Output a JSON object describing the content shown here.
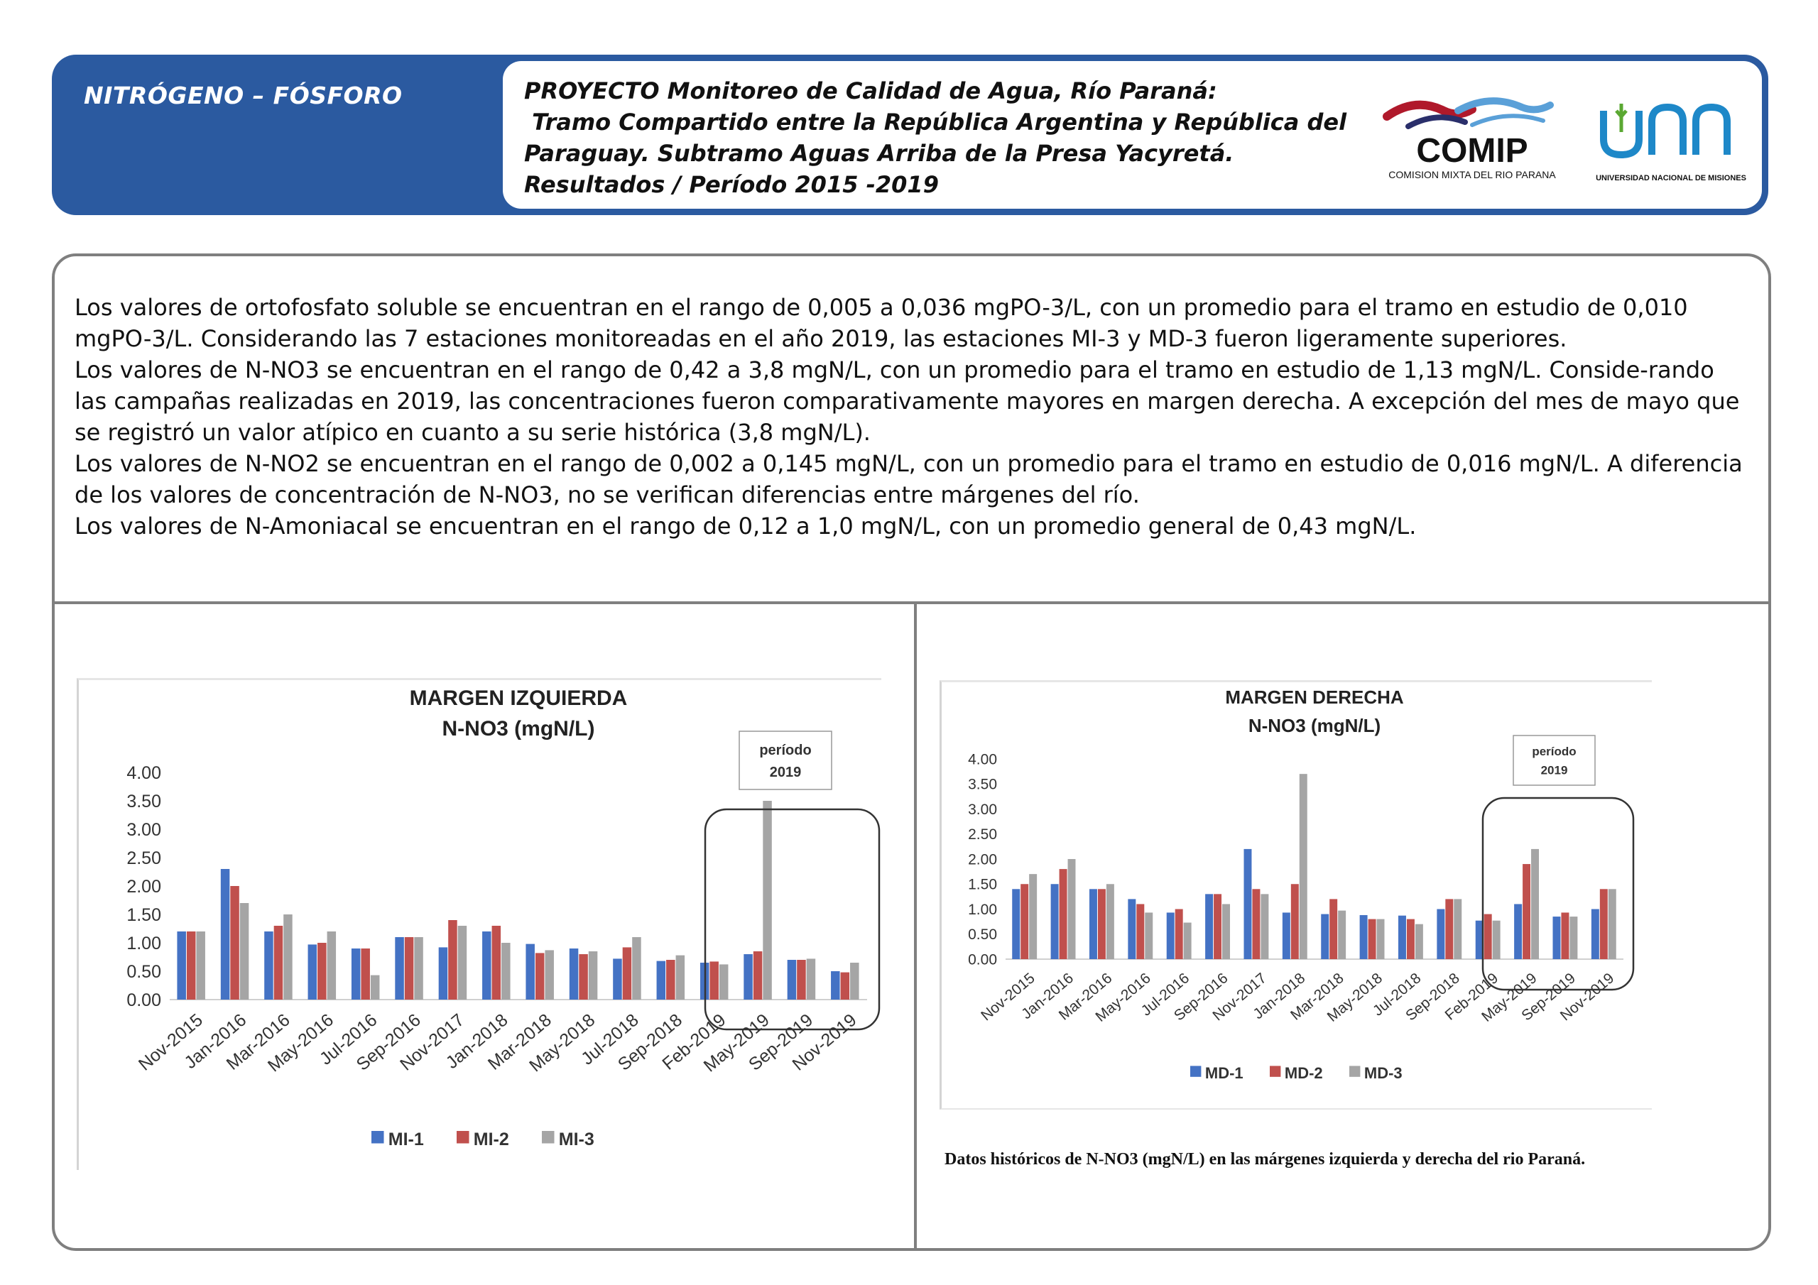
{
  "header": {
    "section_title": "NITRÓGENO – FÓSFORO",
    "project_lines": [
      "PROYECTO Monitoreo de Calidad de Agua, Río Paraná:",
      " Tramo Compartido entre la República Argentina y República del",
      "Paraguay. Subtramo Aguas Arriba de la Presa Yacyretá.",
      "Resultados / Período 2015 -2019"
    ],
    "logo_comip": {
      "name": "COMIP",
      "subtitle": "COMISION MIXTA DEL RIO PARANA"
    },
    "logo_unam": {
      "subtitle": "UNIVERSIDAD NACIONAL DE MISIONES"
    }
  },
  "body": {
    "paragraphs": [
      "Los valores de ortofosfato soluble se encuentran en el rango de 0,005 a 0,036 mgPO-3/L, con un promedio para el tramo en estudio de 0,010 mgPO-3/L. Considerando las 7 estaciones monitoreadas en el año 2019, las estaciones MI-3 y MD-3 fueron ligeramente superiores.",
      "Los valores de N-NO3 se encuentran en el rango de 0,42 a 3,8 mgN/L, con un promedio para el tramo en estudio de 1,13 mgN/L. Conside-rando las campañas realizadas en 2019, las concentraciones fueron comparativamente mayores en margen derecha. A excepción del mes de mayo que se registró un valor atípico en cuanto a su serie histórica (3,8 mgN/L).",
      "Los valores de N-NO2 se encuentran en el rango de 0,002 a 0,145 mgN/L, con un promedio para el tramo en estudio de 0,016 mgN/L. A diferencia de los valores de concentración de N-NO3, no se verifican diferencias entre márgenes del río.",
      "Los valores de N-Amoniacal se encuentran en el rango de 0,12 a 1,0 mgN/L, con un promedio general de 0,43 mgN/L."
    ],
    "caption": "Datos históricos de N-NO3 (mgN/L) en las márgenes izquierda y derecha del rio Paraná."
  },
  "colors": {
    "series1": "#4472c4",
    "series2": "#c0504d",
    "series3": "#a5a5a5",
    "brand": "#2b5aa0"
  },
  "chart_data": [
    {
      "type": "bar",
      "title": "MARGEN IZQUIERDA",
      "subtitle": "N-NO3 (mgN/L)",
      "categories": [
        "Nov-2015",
        "Jan-2016",
        "Mar-2016",
        "May-2016",
        "Jul-2016",
        "Sep-2016",
        "Nov-2017",
        "Jan-2018",
        "Mar-2018",
        "May-2018",
        "Jul-2018",
        "Sep-2018",
        "Feb-2019",
        "May-2019",
        "Sep-2019",
        "Nov-2019"
      ],
      "series": [
        {
          "name": "MI-1",
          "values": [
            1.2,
            2.3,
            1.2,
            0.97,
            0.9,
            1.1,
            0.92,
            1.2,
            0.98,
            0.9,
            0.72,
            0.68,
            0.65,
            0.8,
            0.7,
            0.5
          ]
        },
        {
          "name": "MI-2",
          "values": [
            1.2,
            2.0,
            1.3,
            1.0,
            0.9,
            1.1,
            1.4,
            1.3,
            0.82,
            0.8,
            0.92,
            0.7,
            0.67,
            0.85,
            0.7,
            0.48
          ]
        },
        {
          "name": "MI-3",
          "values": [
            1.2,
            1.7,
            1.5,
            1.2,
            0.43,
            1.1,
            1.3,
            1.0,
            0.87,
            0.85,
            1.1,
            0.78,
            0.62,
            3.5,
            0.72,
            0.65
          ]
        }
      ],
      "ylim": [
        0,
        4
      ],
      "yticks": [
        "0.00",
        "0.50",
        "1.00",
        "1.50",
        "2.00",
        "2.50",
        "3.00",
        "3.50",
        "4.00"
      ],
      "legend": "bottom",
      "annotation": {
        "lines": [
          "período",
          "2019"
        ],
        "categories_highlighted": [
          "Feb-2019",
          "May-2019",
          "Sep-2019",
          "Nov-2019"
        ]
      }
    },
    {
      "type": "bar",
      "title": "MARGEN DERECHA",
      "subtitle": "N-NO3 (mgN/L)",
      "categories": [
        "Nov-2015",
        "Jan-2016",
        "Mar-2016",
        "May-2016",
        "Jul-2016",
        "Sep-2016",
        "Nov-2017",
        "Jan-2018",
        "Mar-2018",
        "May-2018",
        "Jul-2018",
        "Sep-2018",
        "Feb-2019",
        "May-2019",
        "Sep-2019",
        "Nov-2019"
      ],
      "series": [
        {
          "name": "MD-1",
          "values": [
            1.4,
            1.5,
            1.4,
            1.2,
            0.93,
            1.3,
            2.2,
            0.93,
            0.9,
            0.88,
            0.87,
            1.0,
            0.77,
            1.1,
            0.85,
            1.0
          ]
        },
        {
          "name": "MD-2",
          "values": [
            1.5,
            1.8,
            1.4,
            1.1,
            1.0,
            1.3,
            1.4,
            1.5,
            1.2,
            0.8,
            0.8,
            1.2,
            0.9,
            1.9,
            0.93,
            1.4
          ]
        },
        {
          "name": "MD-3",
          "values": [
            1.7,
            2.0,
            1.5,
            0.93,
            0.73,
            1.1,
            1.3,
            3.7,
            0.97,
            0.8,
            0.7,
            1.2,
            0.77,
            2.2,
            0.85,
            1.4
          ]
        }
      ],
      "ylim": [
        0,
        4
      ],
      "yticks": [
        "0.00",
        "0.50",
        "1.00",
        "1.50",
        "2.00",
        "2.50",
        "3.00",
        "3.50",
        "4.00"
      ],
      "legend": "bottom",
      "annotation": {
        "lines": [
          "período",
          "2019"
        ],
        "categories_highlighted": [
          "Feb-2019",
          "May-2019",
          "Sep-2019",
          "Nov-2019"
        ]
      }
    }
  ]
}
